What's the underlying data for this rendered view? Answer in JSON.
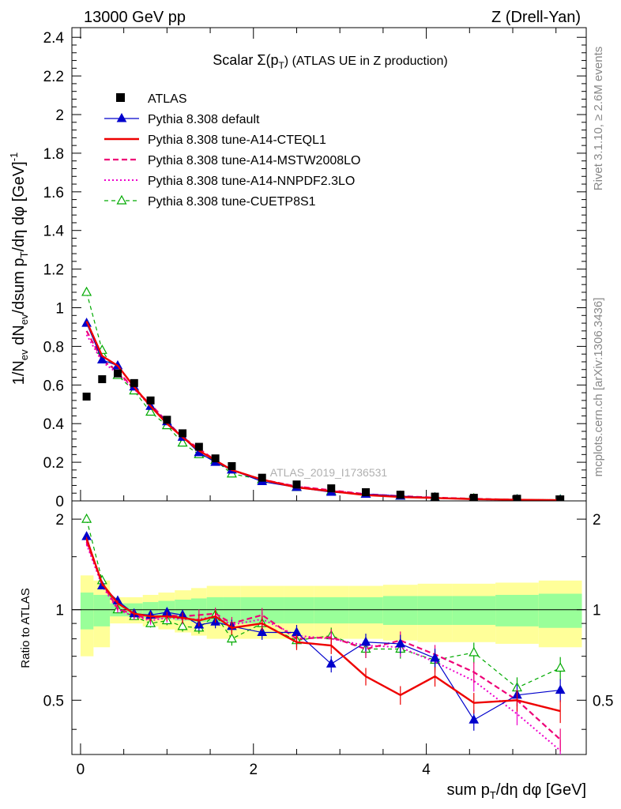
{
  "header": {
    "left": "13000 GeV pp",
    "right": "Z (Drell-Yan)"
  },
  "title_main": "Scalar Σ(p",
  "title_sub": "T",
  "title_rest": ") (ATLAS UE in Z production)",
  "side_top": "Rivet 3.1.10, ≥ 2.6M events",
  "side_bottom": "mcplots.cern.ch [arXiv:1306.3436]",
  "watermark": "ATLAS_2019_I1736531",
  "ylabel_top": "1/N_ev dN_ev/dsum p_T/dη dφ [GeV]^-1",
  "ylabel_bottom": "Ratio to ATLAS",
  "xlabel": "sum p_T/dη dφ [GeV]",
  "colors": {
    "atlas": "#000000",
    "default": "#0000cc",
    "cteql1": "#ee0000",
    "mstw": "#ee0077",
    "nnpdf": "#ee00cc",
    "cuetp8s1": "#00aa00",
    "band_inner": "#99ff99",
    "band_outer": "#ffff99"
  },
  "chart_data": {
    "type": "line",
    "x": [
      0.07,
      0.25,
      0.43,
      0.62,
      0.81,
      1.0,
      1.18,
      1.37,
      1.56,
      1.75,
      2.1,
      2.5,
      2.9,
      3.3,
      3.7,
      4.1,
      4.55,
      5.05,
      5.55
    ],
    "x_edges": [
      0.0,
      0.15,
      0.34,
      0.53,
      0.72,
      0.9,
      1.09,
      1.28,
      1.46,
      1.65,
      1.85,
      2.35,
      2.7,
      3.1,
      3.5,
      3.9,
      4.3,
      4.8,
      5.3,
      5.8
    ],
    "top": {
      "ylim": [
        0,
        2.45
      ],
      "yticks": [
        0,
        0.2,
        0.4,
        0.6,
        0.8,
        1,
        1.2,
        1.4,
        1.6,
        1.8,
        2,
        2.2,
        2.4
      ],
      "ytick_labels": [
        "0",
        "0.2",
        "0.4",
        "0.6",
        "0.8",
        "1",
        "1.2",
        "1.4",
        "1.6",
        "1.8",
        "2",
        "2.2",
        "2.4"
      ]
    },
    "bottom": {
      "ylim": [
        0.33,
        2.3
      ],
      "log": true,
      "yticks": [
        0.5,
        1,
        2
      ],
      "ytick_labels": [
        "0.5",
        "1",
        "2"
      ],
      "band_inner": [
        0.14,
        0.12,
        0.05,
        0.05,
        0.06,
        0.07,
        0.08,
        0.09,
        0.1,
        0.1,
        0.1,
        0.1,
        0.1,
        0.1,
        0.11,
        0.11,
        0.11,
        0.12,
        0.13
      ],
      "band_outer": [
        0.3,
        0.25,
        0.1,
        0.1,
        0.12,
        0.14,
        0.16,
        0.18,
        0.2,
        0.2,
        0.2,
        0.2,
        0.2,
        0.2,
        0.21,
        0.22,
        0.22,
        0.23,
        0.25
      ]
    },
    "xlim": [
      -0.1,
      5.85
    ],
    "xticks": [
      0,
      2,
      4
    ],
    "xtick_labels": [
      "0",
      "2",
      "4"
    ],
    "series": [
      {
        "name": "ATLAS",
        "key": "atlas",
        "values": [
          0.54,
          0.63,
          0.66,
          0.61,
          0.52,
          0.42,
          0.35,
          0.28,
          0.22,
          0.18,
          0.12,
          0.085,
          0.065,
          0.045,
          0.032,
          0.022,
          0.016,
          0.011,
          0.008
        ],
        "ratio": [
          1,
          1,
          1,
          1,
          1,
          1,
          1,
          1,
          1,
          1,
          1,
          1,
          1,
          1,
          1,
          1,
          1,
          1,
          1
        ]
      },
      {
        "name": "Pythia 8.308 default",
        "key": "default",
        "values": [
          0.92,
          0.73,
          0.7,
          0.59,
          0.49,
          0.41,
          0.33,
          0.25,
          0.2,
          0.16,
          0.1,
          0.07,
          0.045,
          0.035,
          0.025,
          0.016,
          0.007,
          0.006,
          0.004
        ],
        "ratio": [
          1.75,
          1.2,
          1.07,
          0.97,
          0.96,
          0.98,
          0.96,
          0.89,
          0.91,
          0.88,
          0.84,
          0.84,
          0.66,
          0.78,
          0.77,
          0.69,
          0.43,
          0.52,
          0.54
        ]
      },
      {
        "name": "Pythia 8.308 tune-A14-CTEQL1",
        "key": "cteql1",
        "values": [
          0.93,
          0.75,
          0.7,
          0.59,
          0.49,
          0.4,
          0.33,
          0.26,
          0.21,
          0.16,
          0.11,
          0.07,
          0.05,
          0.03,
          0.02,
          0.015,
          0.009,
          0.006,
          0.004
        ],
        "ratio": [
          1.72,
          1.22,
          1.05,
          0.97,
          0.95,
          0.95,
          0.94,
          0.92,
          0.95,
          0.87,
          0.9,
          0.78,
          0.76,
          0.6,
          0.52,
          0.6,
          0.49,
          0.5,
          0.46
        ]
      },
      {
        "name": "Pythia 8.308 tune-A14-MSTW2008LO",
        "key": "mstw",
        "values": [
          0.88,
          0.73,
          0.67,
          0.58,
          0.5,
          0.41,
          0.33,
          0.27,
          0.21,
          0.16,
          0.11,
          0.075,
          0.055,
          0.035,
          0.025,
          0.017,
          0.011,
          0.006,
          0.003
        ],
        "ratio": [
          1.68,
          1.22,
          1.01,
          0.96,
          0.93,
          0.96,
          0.95,
          0.96,
          0.97,
          0.9,
          0.96,
          0.8,
          0.81,
          0.74,
          0.79,
          0.71,
          0.62,
          0.5,
          0.37
        ]
      },
      {
        "name": "Pythia 8.308 tune-A14-NNPDF2.3LO",
        "key": "nnpdf",
        "values": [
          0.86,
          0.72,
          0.66,
          0.58,
          0.49,
          0.4,
          0.33,
          0.26,
          0.21,
          0.16,
          0.11,
          0.075,
          0.052,
          0.035,
          0.024,
          0.015,
          0.009,
          0.005,
          0.003
        ],
        "ratio": [
          1.65,
          1.2,
          1.0,
          0.95,
          0.92,
          0.94,
          0.93,
          0.93,
          0.95,
          0.89,
          0.93,
          0.82,
          0.8,
          0.76,
          0.75,
          0.67,
          0.58,
          0.45,
          0.34
        ]
      },
      {
        "name": "Pythia 8.308 tune-CUETP8S1",
        "key": "cuetp8s1",
        "values": [
          1.08,
          0.78,
          0.65,
          0.57,
          0.46,
          0.39,
          0.3,
          0.24,
          0.21,
          0.14,
          0.11,
          0.07,
          0.05,
          0.035,
          0.025,
          0.017,
          0.012,
          0.007,
          0.006
        ],
        "ratio": [
          2.0,
          1.25,
          1.0,
          0.95,
          0.9,
          0.92,
          0.88,
          0.87,
          0.96,
          0.8,
          0.9,
          0.79,
          0.82,
          0.74,
          0.74,
          0.68,
          0.72,
          0.55,
          0.64
        ]
      }
    ]
  }
}
